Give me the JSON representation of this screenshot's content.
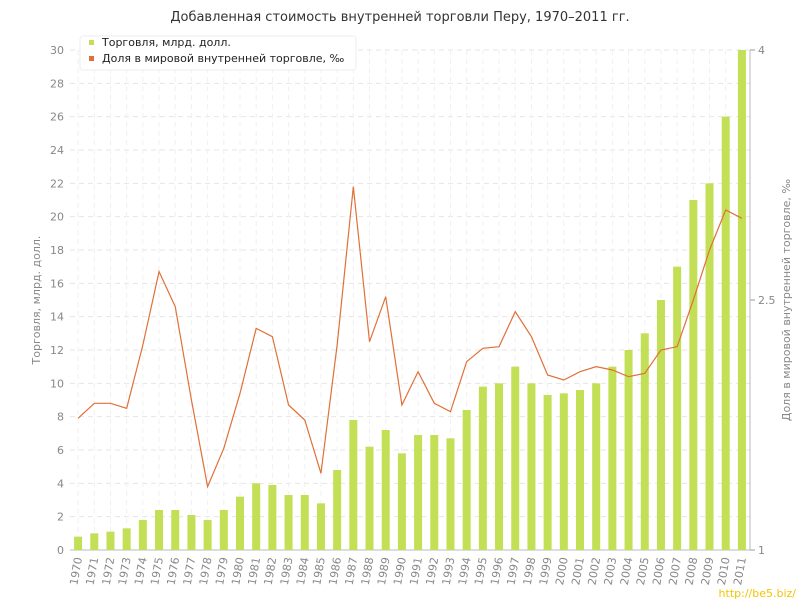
{
  "chart_data": {
    "type": "bar-line",
    "title": "Добавленная стоимость внутренней торговли Перу, 1970–2011 гг.",
    "y_label": "Торговля, млрд. долл.",
    "y2_label": "Доля в мировой внутренней торговле, ‰",
    "categories": [
      "1970",
      "1971",
      "1972",
      "1973",
      "1974",
      "1975",
      "1976",
      "1977",
      "1978",
      "1979",
      "1980",
      "1981",
      "1982",
      "1983",
      "1984",
      "1985",
      "1986",
      "1987",
      "1988",
      "1989",
      "1990",
      "1991",
      "1992",
      "1993",
      "1994",
      "1995",
      "1996",
      "1997",
      "1998",
      "1999",
      "2000",
      "2001",
      "2002",
      "2003",
      "2004",
      "2005",
      "2006",
      "2007",
      "2008",
      "2009",
      "2010",
      "2011"
    ],
    "series": [
      {
        "name": "Торговля, млрд. долл.",
        "color": "#c3df55",
        "type": "bar",
        "values": [
          0.8,
          1.0,
          1.1,
          1.3,
          1.8,
          2.4,
          2.4,
          2.1,
          1.8,
          2.4,
          3.2,
          4.0,
          3.9,
          3.3,
          3.3,
          2.8,
          4.8,
          7.8,
          6.2,
          7.2,
          5.8,
          6.9,
          6.9,
          6.7,
          8.4,
          9.8,
          10.0,
          11.0,
          10.0,
          9.3,
          9.4,
          9.6,
          10.0,
          11.0,
          12.0,
          13.0,
          15.0,
          17.0,
          21.0,
          22.0,
          26.0,
          30.0
        ]
      },
      {
        "name": "Доля в мировой внутренней торговле, ‰",
        "color": "#e0703a",
        "type": "line",
        "axis": "y2",
        "values": [
          1.79,
          1.88,
          1.88,
          1.85,
          2.23,
          2.67,
          2.46,
          1.9,
          1.38,
          1.61,
          1.94,
          2.33,
          2.28,
          1.87,
          1.78,
          1.46,
          2.23,
          3.18,
          2.25,
          2.52,
          1.87,
          2.07,
          1.88,
          1.83,
          2.13,
          2.21,
          2.22,
          2.43,
          2.28,
          2.05,
          2.02,
          2.07,
          2.1,
          2.08,
          2.04,
          2.06,
          2.2,
          2.22,
          2.5,
          2.8,
          3.04,
          2.99
        ]
      }
    ],
    "ylim": [
      0,
      30
    ],
    "yticks": [
      0,
      2,
      4,
      6,
      8,
      10,
      12,
      14,
      16,
      18,
      20,
      22,
      24,
      26,
      28,
      30
    ],
    "y2lim": [
      1,
      4
    ],
    "y2ticks": [
      1,
      2.5,
      4
    ],
    "grid": true
  },
  "watermark": "http://be5.biz/"
}
